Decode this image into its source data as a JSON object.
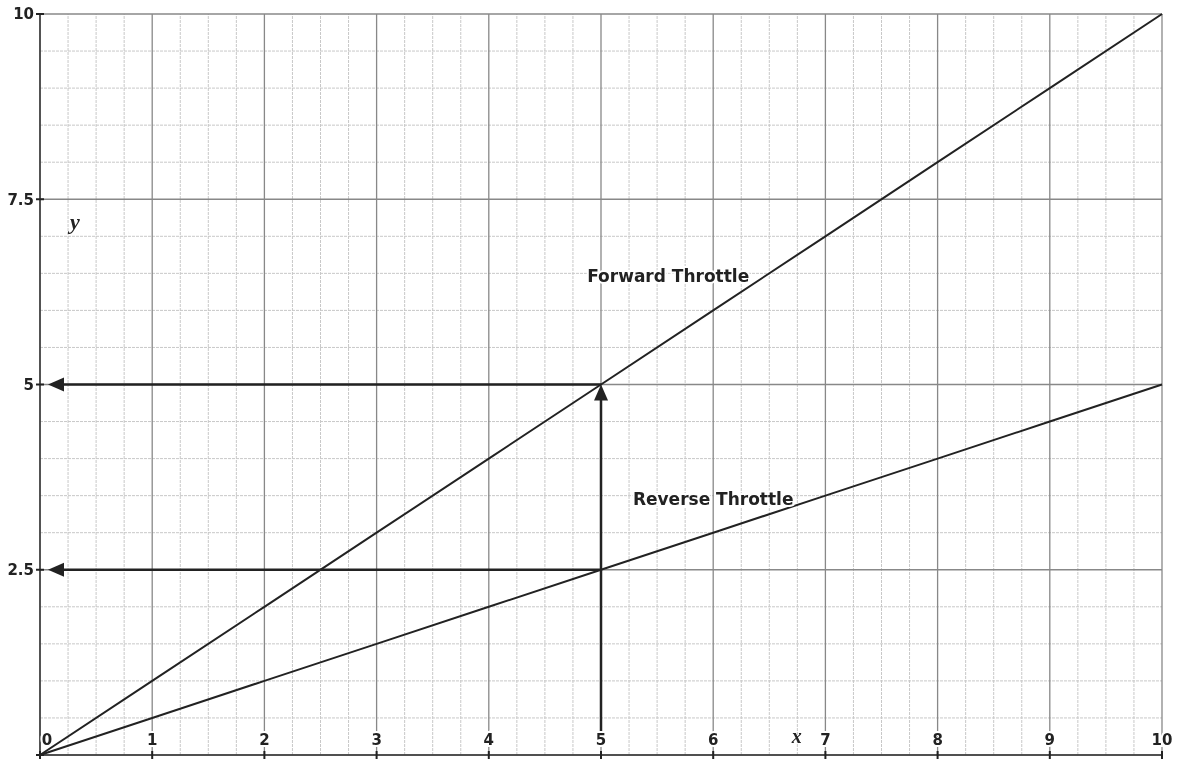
{
  "chart_data": {
    "type": "line",
    "xlabel": "x",
    "ylabel": "y",
    "x": [
      0,
      1,
      2,
      3,
      4,
      5,
      6,
      7,
      8,
      9,
      10
    ],
    "series": [
      {
        "name": "Forward Throttle",
        "color": "#222222",
        "values": [
          0,
          1,
          2,
          3,
          4,
          5,
          6,
          7,
          8,
          9,
          10
        ]
      },
      {
        "name": "Reverse Throttle",
        "color": "#222222",
        "values": [
          0,
          0.5,
          1,
          1.5,
          2,
          2.5,
          3,
          3.5,
          4,
          4.5,
          5
        ]
      }
    ],
    "xlim": [
      0,
      10
    ],
    "ylim": [
      0,
      10
    ],
    "xticks": [
      0,
      1,
      2,
      3,
      4,
      5,
      6,
      7,
      8,
      9,
      10
    ],
    "yticks": [
      {
        "value": 0,
        "label": null
      },
      2.5,
      5,
      7.5,
      10
    ],
    "ref_lines": [
      {
        "axis": "x",
        "value": 5,
        "label": null,
        "color": "#222222"
      },
      {
        "axis": "y",
        "value": 5,
        "label": null,
        "color": "#222222"
      },
      {
        "axis": "y",
        "value": 2.5,
        "label": null,
        "color": "#222222"
      }
    ],
    "grid": true,
    "marker": "none",
    "line_style": "solid"
  }
}
